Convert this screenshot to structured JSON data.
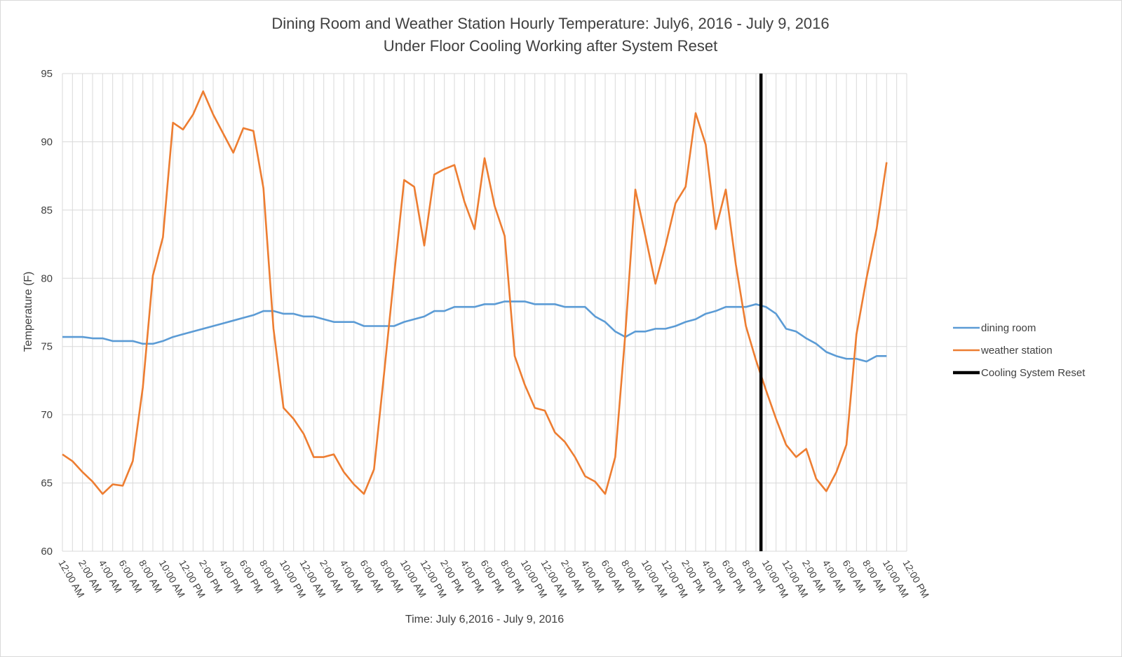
{
  "chart_data": {
    "type": "line",
    "title": "Dining Room and Weather Station Hourly Temperature: July6, 2016 - July 9, 2016",
    "subtitle": "Under Floor Cooling Working after System Reset",
    "xlabel": "Time: July 6,2016 - July 9, 2016",
    "ylabel": "Temperature (F)",
    "ylim": [
      60,
      95
    ],
    "yticks": [
      60,
      65,
      70,
      75,
      80,
      85,
      90,
      95
    ],
    "xticks": [
      "12:00 AM",
      "2:00 AM",
      "4:00 AM",
      "6:00 AM",
      "8:00 AM",
      "10:00 AM",
      "12:00 PM",
      "2:00 PM",
      "4:00 PM",
      "6:00 PM",
      "8:00 PM",
      "10:00 PM",
      "12:00 AM",
      "2:00 AM",
      "4:00 AM",
      "6:00 AM",
      "8:00 AM",
      "10:00 AM",
      "12:00 PM",
      "2:00 PM",
      "4:00 PM",
      "6:00 PM",
      "8:00 PM",
      "10:00 PM",
      "12:00 AM",
      "2:00 AM",
      "4:00 AM",
      "6:00 AM",
      "8:00 AM",
      "10:00 AM",
      "12:00 PM",
      "2:00 PM",
      "4:00 PM",
      "6:00 PM",
      "8:00 PM",
      "10:00 PM",
      "12:00 AM",
      "2:00 AM",
      "4:00 AM",
      "6:00 AM",
      "8:00 AM",
      "10:00 AM",
      "12:00 PM"
    ],
    "grid": true,
    "legend_position": "right",
    "series": [
      {
        "name": "dining room",
        "color": "#5b9bd5",
        "values": [
          75.7,
          75.7,
          75.7,
          75.6,
          75.6,
          75.4,
          75.4,
          75.4,
          75.2,
          75.2,
          75.4,
          75.7,
          75.9,
          76.1,
          76.3,
          76.5,
          76.7,
          76.9,
          77.1,
          77.3,
          77.6,
          77.6,
          77.4,
          77.4,
          77.2,
          77.2,
          77.0,
          76.8,
          76.8,
          76.8,
          76.5,
          76.5,
          76.5,
          76.5,
          76.8,
          77.0,
          77.2,
          77.6,
          77.6,
          77.9,
          77.9,
          77.9,
          78.1,
          78.1,
          78.3,
          78.3,
          78.3,
          78.1,
          78.1,
          78.1,
          77.9,
          77.9,
          77.9,
          77.2,
          76.8,
          76.1,
          75.7,
          76.1,
          76.1,
          76.3,
          76.3,
          76.5,
          76.8,
          77.0,
          77.4,
          77.6,
          77.9,
          77.9,
          77.9,
          78.1,
          77.9,
          77.4,
          76.3,
          76.1,
          75.6,
          75.2,
          74.6,
          74.3,
          74.1,
          74.1,
          73.9,
          74.3,
          74.3
        ]
      },
      {
        "name": "weather station",
        "color": "#ed7d31",
        "values": [
          67.1,
          66.6,
          65.8,
          65.1,
          64.2,
          64.9,
          64.8,
          66.6,
          72.0,
          80.2,
          83.0,
          91.4,
          90.9,
          92.0,
          93.7,
          92.0,
          90.6,
          89.2,
          91.0,
          90.8,
          86.6,
          76.3,
          70.5,
          69.7,
          68.6,
          66.9,
          66.9,
          67.1,
          65.8,
          64.9,
          64.2,
          66.0,
          73.0,
          80.2,
          87.2,
          86.7,
          82.4,
          87.6,
          88.0,
          88.3,
          85.6,
          83.6,
          88.8,
          85.3,
          83.1,
          74.3,
          72.2,
          70.5,
          70.3,
          68.7,
          68.0,
          66.9,
          65.5,
          65.1,
          64.2,
          66.9,
          75.9,
          86.5,
          83.1,
          79.6,
          82.4,
          85.5,
          86.7,
          92.1,
          89.8,
          83.6,
          86.5,
          81.0,
          76.5,
          74.0,
          71.8,
          69.7,
          67.8,
          66.9,
          67.5,
          65.3,
          64.4,
          65.8,
          67.8,
          75.9,
          80.0,
          83.6,
          88.5
        ]
      }
    ],
    "reference_line": {
      "name": "Cooling System Reset",
      "color": "#000000",
      "x_hour": 69.5
    }
  }
}
